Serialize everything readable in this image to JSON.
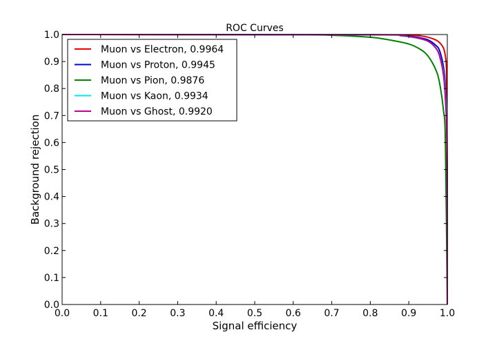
{
  "chart_data": {
    "type": "line",
    "title": "ROC Curves",
    "xlabel": "Signal efficiency",
    "ylabel": "Background rejection",
    "xlim": [
      0.0,
      1.0
    ],
    "ylim": [
      0.0,
      1.0
    ],
    "xticks": [
      "0.0",
      "0.1",
      "0.2",
      "0.3",
      "0.4",
      "0.5",
      "0.6",
      "0.7",
      "0.8",
      "0.9",
      "1.0"
    ],
    "yticks": [
      "0.0",
      "0.1",
      "0.2",
      "0.3",
      "0.4",
      "0.5",
      "0.6",
      "0.7",
      "0.8",
      "0.9",
      "1.0"
    ],
    "grid": false,
    "legend_position": "top-left",
    "series": [
      {
        "name": "Muon vs Electron, 0.9964",
        "color": "#e50000",
        "x": [
          0.0,
          0.85,
          0.9,
          0.93,
          0.95,
          0.97,
          0.98,
          0.99,
          0.995,
          0.998,
          1.0,
          1.0
        ],
        "y": [
          1.0,
          0.999,
          0.998,
          0.995,
          0.99,
          0.98,
          0.97,
          0.95,
          0.92,
          0.85,
          0.5,
          0.0
        ]
      },
      {
        "name": "Muon vs Proton, 0.9945",
        "color": "#0000d0",
        "x": [
          0.0,
          0.8,
          0.88,
          0.92,
          0.95,
          0.97,
          0.98,
          0.99,
          0.995,
          0.999,
          1.0
        ],
        "y": [
          1.0,
          0.999,
          0.997,
          0.99,
          0.98,
          0.96,
          0.94,
          0.88,
          0.8,
          0.6,
          0.0
        ]
      },
      {
        "name": "Muon vs Pion, 0.9876",
        "color": "#008000",
        "x": [
          0.0,
          0.6,
          0.7,
          0.8,
          0.85,
          0.9,
          0.93,
          0.95,
          0.97,
          0.98,
          0.99,
          0.995,
          1.0
        ],
        "y": [
          1.0,
          0.999,
          0.997,
          0.99,
          0.98,
          0.965,
          0.945,
          0.92,
          0.87,
          0.82,
          0.72,
          0.6,
          0.0
        ]
      },
      {
        "name": "Muon vs Kaon, 0.9934",
        "color": "#00e5e5",
        "x": [
          0.0,
          0.8,
          0.88,
          0.92,
          0.95,
          0.97,
          0.98,
          0.99,
          0.995,
          0.999,
          1.0
        ],
        "y": [
          1.0,
          0.999,
          0.995,
          0.987,
          0.975,
          0.95,
          0.92,
          0.86,
          0.78,
          0.62,
          0.0
        ]
      },
      {
        "name": "Muon vs Ghost, 0.9920",
        "color": "#c0008c",
        "x": [
          0.0,
          0.8,
          0.88,
          0.92,
          0.95,
          0.97,
          0.98,
          0.99,
          0.995,
          0.999,
          1.0
        ],
        "y": [
          1.0,
          0.999,
          0.996,
          0.988,
          0.975,
          0.95,
          0.92,
          0.85,
          0.76,
          0.58,
          0.0
        ]
      }
    ]
  }
}
